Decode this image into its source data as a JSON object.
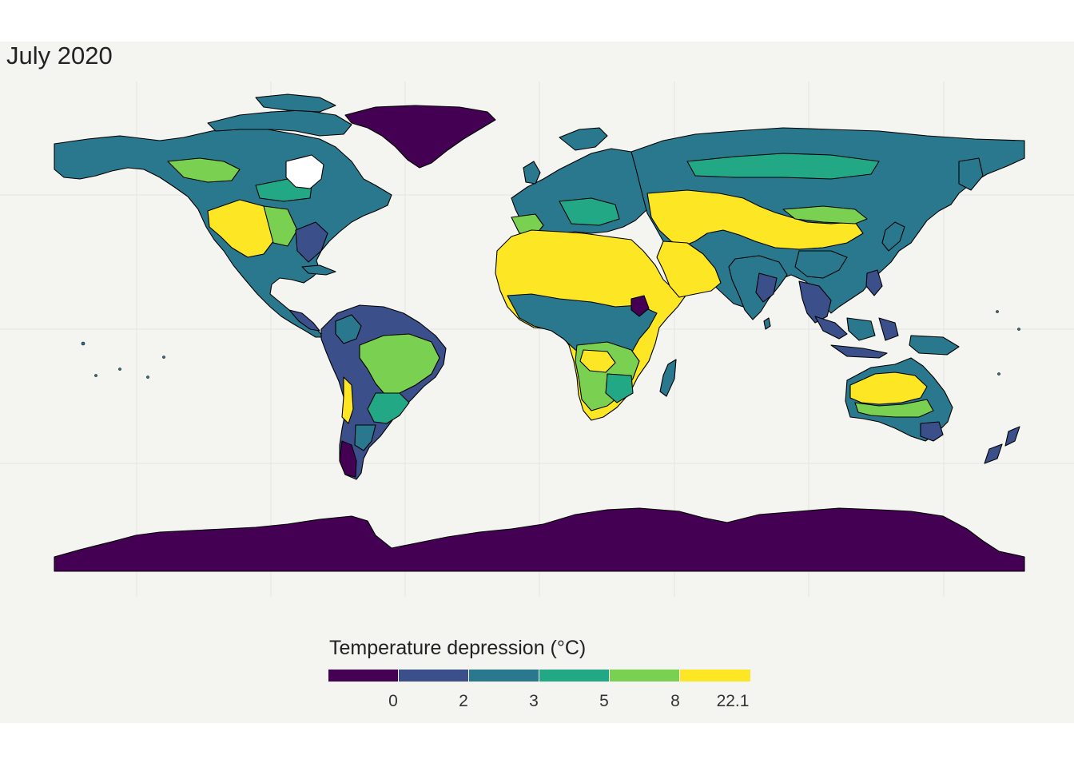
{
  "title": "July 2020",
  "legend": {
    "title": "Temperature depression (°C)",
    "labels": [
      "0",
      "2",
      "3",
      "5",
      "8",
      "22.1"
    ],
    "colors": [
      "#440154",
      "#3b4f8a",
      "#2a788e",
      "#22a884",
      "#7ad151",
      "#fde725"
    ]
  },
  "colors": {
    "background": "#f4f4f0",
    "gridline": "#e6e6e2",
    "border": "#000000"
  }
}
